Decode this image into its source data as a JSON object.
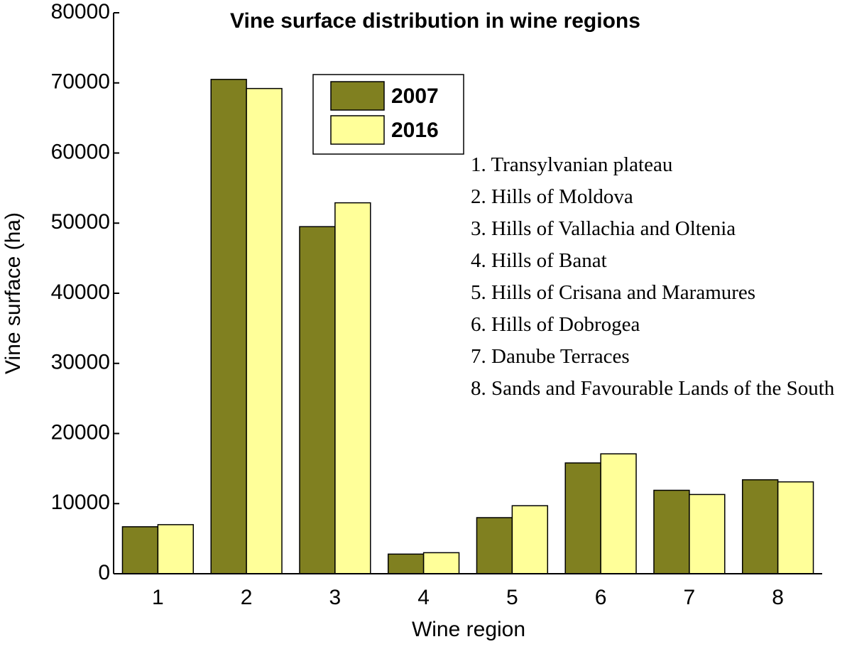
{
  "chart_data": {
    "type": "bar",
    "title": "Vine surface distribution in wine regions",
    "x_label": "Wine region",
    "y_label": "Vine surface (ha)",
    "categories": [
      "1",
      "2",
      "3",
      "4",
      "5",
      "6",
      "7",
      "8"
    ],
    "series": [
      {
        "name": "2007",
        "color": "#808020",
        "values": [
          6700,
          70500,
          49500,
          2800,
          8000,
          15800,
          11900,
          13400
        ]
      },
      {
        "name": "2016",
        "color": "#ffff99",
        "values": [
          7000,
          69200,
          52900,
          3000,
          9700,
          17100,
          11300,
          13100
        ]
      }
    ],
    "ylim": [
      0,
      80000
    ],
    "yticks": [
      0,
      10000,
      20000,
      30000,
      40000,
      50000,
      60000,
      70000,
      80000
    ],
    "grid": false,
    "legend": "upper center",
    "annotations": [
      "1. Transylvanian plateau",
      "2. Hills of Moldova",
      "3. Hills of Vallachia and Oltenia",
      "4. Hills of Banat",
      "5. Hills of Crisana and Maramures",
      "6. Hills of Dobrogea",
      "7. Danube Terraces",
      "8. Sands and Favourable Lands of the South"
    ]
  }
}
